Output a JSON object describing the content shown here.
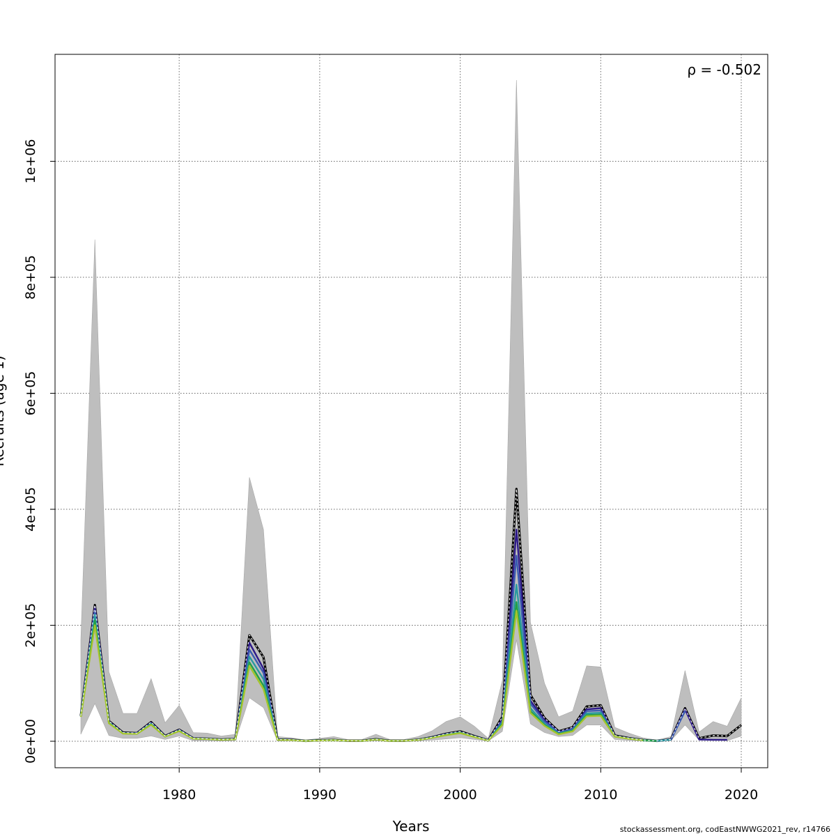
{
  "chart_data": {
    "type": "line",
    "title": "",
    "xlabel": "Years",
    "ylabel": "Recruits (age 1)",
    "xlim": [
      1973,
      2020
    ],
    "ylim": [
      0,
      1140000
    ],
    "x_ticks": [
      1980,
      1990,
      2000,
      2010,
      2020
    ],
    "y_ticks": [
      0,
      200000,
      400000,
      600000,
      800000,
      1000000
    ],
    "y_tick_labels": [
      "0e+00",
      "2e+05",
      "4e+05",
      "6e+05",
      "8e+05",
      "1e+06"
    ],
    "grid": true,
    "annotation": "ρ = -0.502",
    "colors": {
      "band": "#bebebe",
      "base": "#000000",
      "series": [
        "#2e1a8a",
        "#3b5bb0",
        "#2a9aa0",
        "#23a04a",
        "#a4c42c"
      ]
    },
    "band": {
      "x": [
        1973,
        1974,
        1975,
        1976,
        1977,
        1978,
        1979,
        1980,
        1981,
        1982,
        1983,
        1984,
        1985,
        1986,
        1987,
        1988,
        1989,
        1990,
        1991,
        1992,
        1993,
        1994,
        1995,
        1996,
        1997,
        1998,
        1999,
        2000,
        2001,
        2002,
        2003,
        2004,
        2005,
        2006,
        2007,
        2008,
        2009,
        2010,
        2011,
        2012,
        2013,
        2014,
        2015,
        2016,
        2017,
        2018,
        2019,
        2020
      ],
      "upper": [
        175000,
        865000,
        120000,
        48000,
        48000,
        108000,
        32000,
        62000,
        15000,
        14000,
        9000,
        12000,
        455000,
        365000,
        8000,
        6000,
        2000,
        5000,
        8000,
        3000,
        3000,
        12000,
        3000,
        3000,
        8000,
        18000,
        34000,
        42000,
        26000,
        5000,
        105000,
        1140000,
        205000,
        100000,
        42000,
        52000,
        130000,
        128000,
        24000,
        14000,
        6000,
        2000,
        8000,
        122000,
        16000,
        34000,
        26000,
        75000
      ],
      "lower": [
        12000,
        65000,
        10000,
        5000,
        5000,
        9000,
        3000,
        9000,
        1000,
        1000,
        500,
        1000,
        75000,
        58000,
        500,
        500,
        200,
        500,
        800,
        300,
        300,
        1000,
        300,
        300,
        800,
        2000,
        4000,
        6000,
        3000,
        500,
        17000,
        175000,
        30000,
        15000,
        8000,
        10000,
        28000,
        28000,
        3000,
        1500,
        600,
        200,
        1500,
        28000,
        2000,
        2000,
        1000,
        9000
      ]
    },
    "base_series": {
      "name": "base",
      "x": [
        1973,
        1974,
        1975,
        1976,
        1977,
        1978,
        1979,
        1980,
        1981,
        1982,
        1983,
        1984,
        1985,
        1986,
        1987,
        1988,
        1989,
        1990,
        1991,
        1992,
        1993,
        1994,
        1995,
        1996,
        1997,
        1998,
        1999,
        2000,
        2001,
        2002,
        2003,
        2004,
        2005,
        2006,
        2007,
        2008,
        2009,
        2010,
        2011,
        2012,
        2013,
        2014,
        2015,
        2016,
        2017,
        2018,
        2019,
        2020
      ],
      "values": [
        44000,
        235000,
        35000,
        15000,
        14000,
        33000,
        9000,
        20000,
        5000,
        4500,
        3000,
        4000,
        183000,
        145000,
        3000,
        2500,
        600,
        1800,
        2200,
        900,
        800,
        3500,
        700,
        900,
        2500,
        7000,
        13000,
        17000,
        9000,
        1500,
        42000,
        435000,
        80000,
        40000,
        17000,
        24000,
        60000,
        62000,
        10000,
        5500,
        2200,
        600,
        3200,
        57000,
        5000,
        10000,
        9000,
        28000
      ]
    },
    "series": [
      {
        "x": [
          1973,
          1974,
          1975,
          1976,
          1977,
          1978,
          1979,
          1980,
          1981,
          1982,
          1983,
          1984,
          1985,
          1986,
          1987,
          1988,
          1989,
          1990,
          1991,
          1992,
          1993,
          1994,
          1995,
          1996,
          1997,
          1998,
          1999,
          2000,
          2001,
          2002,
          2003,
          2004,
          2005,
          2006,
          2007,
          2008,
          2009,
          2010,
          2011,
          2012,
          2013,
          2014,
          2015,
          2016,
          2017,
          2018,
          2019
        ],
        "values": [
          44000,
          232000,
          34000,
          14500,
          14000,
          32000,
          8800,
          19500,
          5000,
          4400,
          3000,
          4000,
          170000,
          125000,
          2800,
          2400,
          600,
          1700,
          2100,
          900,
          800,
          3300,
          700,
          900,
          2400,
          6800,
          12500,
          16000,
          8500,
          1400,
          38000,
          365000,
          70000,
          37000,
          16000,
          22000,
          55000,
          57000,
          9000,
          5200,
          2100,
          600,
          3000,
          55000,
          3000,
          2500,
          2500
        ]
      },
      {
        "x": [
          1973,
          1974,
          1975,
          1976,
          1977,
          1978,
          1979,
          1980,
          1981,
          1982,
          1983,
          1984,
          1985,
          1986,
          1987,
          1988,
          1989,
          1990,
          1991,
          1992,
          1993,
          1994,
          1995,
          1996,
          1997,
          1998,
          1999,
          2000,
          2001,
          2002,
          2003,
          2004,
          2005,
          2006,
          2007,
          2008,
          2009,
          2010,
          2011,
          2012,
          2013,
          2014,
          2015,
          2016
        ],
        "values": [
          43500,
          225000,
          33000,
          14000,
          13500,
          31000,
          8500,
          19000,
          4800,
          4200,
          2900,
          3800,
          158000,
          118000,
          2700,
          2300,
          580,
          1650,
          2050,
          880,
          780,
          3200,
          690,
          880,
          2350,
          6600,
          12000,
          15500,
          8200,
          1350,
          35000,
          320000,
          65000,
          34000,
          15000,
          21000,
          52000,
          53000,
          8700,
          5000,
          2000,
          580,
          2900,
          52000
        ]
      },
      {
        "x": [
          1973,
          1974,
          1975,
          1976,
          1977,
          1978,
          1979,
          1980,
          1981,
          1982,
          1983,
          1984,
          1985,
          1986,
          1987,
          1988,
          1989,
          1990,
          1991,
          1992,
          1993,
          1994,
          1995,
          1996,
          1997,
          1998,
          1999,
          2000,
          2001,
          2002,
          2003,
          2004,
          2005,
          2006,
          2007,
          2008,
          2009,
          2010,
          2011,
          2012,
          2013,
          2014,
          2015
        ],
        "values": [
          43000,
          218000,
          32500,
          13800,
          13300,
          30000,
          8300,
          18500,
          4600,
          4000,
          2800,
          3600,
          146000,
          107000,
          2600,
          2200,
          560,
          1600,
          2000,
          860,
          760,
          3100,
          680,
          860,
          2300,
          6400,
          11500,
          15000,
          8000,
          1300,
          32000,
          270000,
          57000,
          30000,
          13500,
          19000,
          48000,
          49000,
          8400,
          4800,
          1900,
          560,
          2800
        ]
      },
      {
        "x": [
          1973,
          1974,
          1975,
          1976,
          1977,
          1978,
          1979,
          1980,
          1981,
          1982,
          1983,
          1984,
          1985,
          1986,
          1987,
          1988,
          1989,
          1990,
          1991,
          1992,
          1993,
          1994,
          1995,
          1996,
          1997,
          1998,
          1999,
          2000,
          2001,
          2002,
          2003,
          2004,
          2005,
          2006,
          2007,
          2008,
          2009,
          2010,
          2011,
          2012,
          2013,
          2014
        ],
        "values": [
          42500,
          208000,
          31500,
          13500,
          13000,
          29000,
          8100,
          18000,
          4500,
          3900,
          2700,
          3500,
          136000,
          96000,
          2500,
          2100,
          540,
          1550,
          1950,
          840,
          740,
          3000,
          670,
          840,
          2250,
          6200,
          11000,
          14500,
          7800,
          1250,
          30000,
          240000,
          52000,
          28000,
          12500,
          18000,
          45000,
          46000,
          8200,
          4600,
          1850,
          540
        ]
      },
      {
        "x": [
          1973,
          1974,
          1975,
          1976,
          1977,
          1978,
          1979,
          1980,
          1981,
          1982,
          1983,
          1984,
          1985,
          1986,
          1987,
          1988,
          1989,
          1990,
          1991,
          1992,
          1993,
          1994,
          1995,
          1996,
          1997,
          1998,
          1999,
          2000,
          2001,
          2002,
          2003,
          2004,
          2005,
          2006,
          2007,
          2008,
          2009,
          2010,
          2011,
          2012,
          2013
        ],
        "values": [
          42000,
          200000,
          31000,
          13200,
          12800,
          28500,
          8000,
          17500,
          4400,
          3800,
          2600,
          3400,
          130000,
          90000,
          2400,
          2000,
          520,
          1500,
          1900,
          820,
          720,
          2900,
          660,
          820,
          2200,
          6000,
          10500,
          14000,
          7500,
          1200,
          28000,
          225000,
          49000,
          26500,
          11800,
          17000,
          43000,
          44000,
          8000,
          4500,
          1800
        ]
      }
    ]
  },
  "footer": "stockassessment.org, codEastNWWG2021_rev, r14766"
}
